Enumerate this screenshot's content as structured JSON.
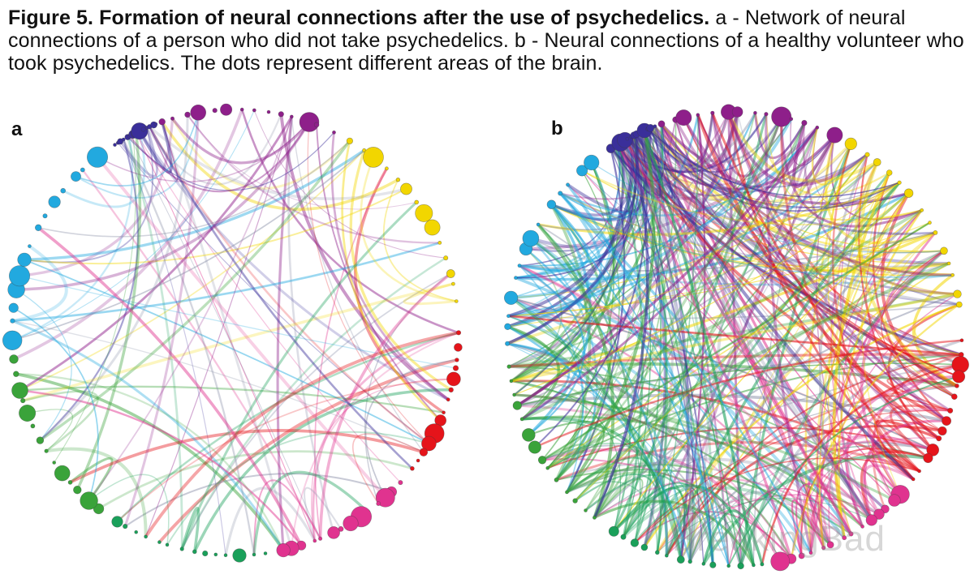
{
  "caption": {
    "bold": "Figure 5. Formation of neural connections after the use of psychedelics.",
    "rest": " a - Network of neural connections of a person who did not take psychedelics. b - Neural connections of a healthy volunteer who took psychedelics. The dots represent different areas of the brain."
  },
  "panels": {
    "a": {
      "label": "a"
    },
    "b": {
      "label": "b"
    }
  },
  "region_colors": [
    "#8e1f8a",
    "#f2d600",
    "#e5141a",
    "#e0338f",
    "#1aa05a",
    "#3aa33a",
    "#22a9df",
    "#3a2f9a"
  ],
  "watermark": "BreakingBad"
}
